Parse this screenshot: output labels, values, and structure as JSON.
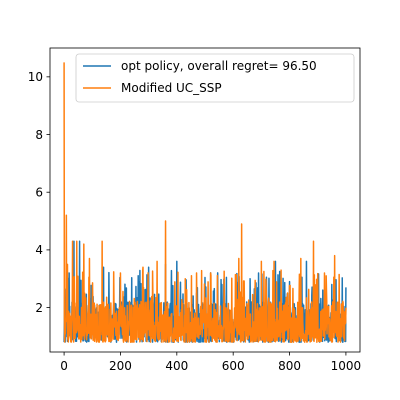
{
  "chart_data": {
    "type": "line",
    "title": "",
    "xlabel": "",
    "ylabel": "",
    "xlim": [
      -50,
      1050
    ],
    "ylim": [
      0.46,
      11.0
    ],
    "x_ticks": [
      0,
      200,
      400,
      600,
      800,
      1000
    ],
    "y_ticks": [
      2,
      4,
      6,
      8,
      10
    ],
    "grid": false,
    "legend_position": "top-right",
    "series": [
      {
        "name": "opt policy, overall regret= 96.50",
        "color": "#1f77b4",
        "x_start": 0,
        "x_end": 1000,
        "n_points": 1001,
        "min": 0.8,
        "max": 4.3,
        "peaks": [
          [
            18,
            3.2
          ],
          [
            35,
            4.3
          ],
          [
            55,
            4.3
          ],
          [
            140,
            3.4
          ],
          [
            220,
            2.6
          ],
          [
            300,
            3.4
          ],
          [
            360,
            3.5
          ],
          [
            400,
            3.6
          ],
          [
            470,
            2.5
          ],
          [
            560,
            2.8
          ],
          [
            660,
            3.0
          ],
          [
            690,
            3.2
          ],
          [
            750,
            3.6
          ],
          [
            800,
            2.9
          ],
          [
            860,
            3.6
          ],
          [
            950,
            2.8
          ],
          [
            1000,
            2.7
          ]
        ]
      },
      {
        "name": "Modified UC_SSP",
        "color": "#ff7f0e",
        "x_start": 0,
        "x_end": 1000,
        "n_points": 1001,
        "min": 0.8,
        "max": 10.5,
        "peaks": [
          [
            0,
            10.5
          ],
          [
            8,
            5.2
          ],
          [
            12,
            3.5
          ],
          [
            30,
            4.3
          ],
          [
            45,
            4.3
          ],
          [
            70,
            4.2
          ],
          [
            90,
            3.7
          ],
          [
            135,
            4.3
          ],
          [
            200,
            3.2
          ],
          [
            280,
            3.4
          ],
          [
            330,
            3.6
          ],
          [
            360,
            5.0
          ],
          [
            430,
            3.0
          ],
          [
            520,
            3.2
          ],
          [
            620,
            3.7
          ],
          [
            630,
            4.9
          ],
          [
            700,
            3.6
          ],
          [
            745,
            3.6
          ],
          [
            770,
            3.3
          ],
          [
            840,
            3.7
          ],
          [
            885,
            4.3
          ],
          [
            930,
            3.1
          ],
          [
            960,
            3.8
          ],
          [
            1000,
            2.0
          ]
        ]
      }
    ]
  }
}
